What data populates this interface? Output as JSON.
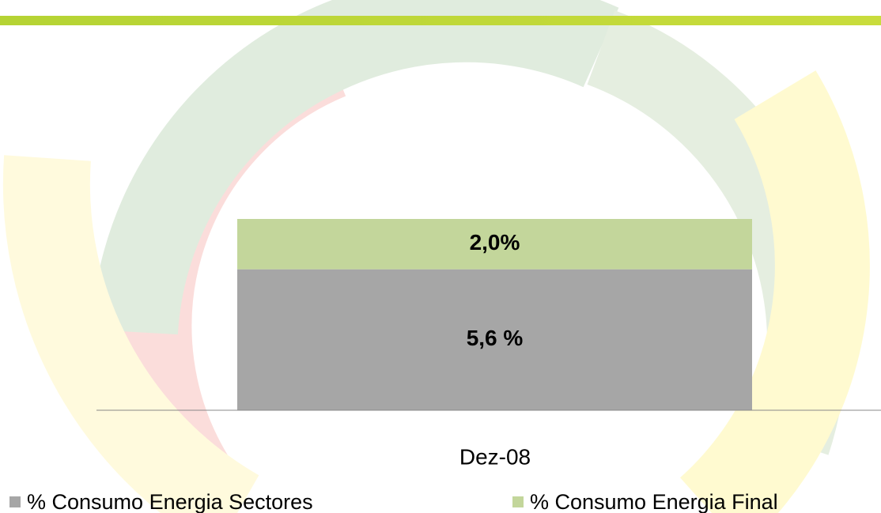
{
  "chart_data": {
    "type": "stacked_bar",
    "categories": [
      "Dez-08"
    ],
    "series": [
      {
        "name": "% Consumo Energia Sectores",
        "color": "#a6a6a6",
        "values": [
          5.6
        ],
        "value_labels": [
          "5,6 %"
        ]
      },
      {
        "name": "% Consumo Energia Final",
        "color": "#c3d69b",
        "values": [
          2.0
        ],
        "value_labels": [
          "2,0%"
        ]
      }
    ]
  }
}
